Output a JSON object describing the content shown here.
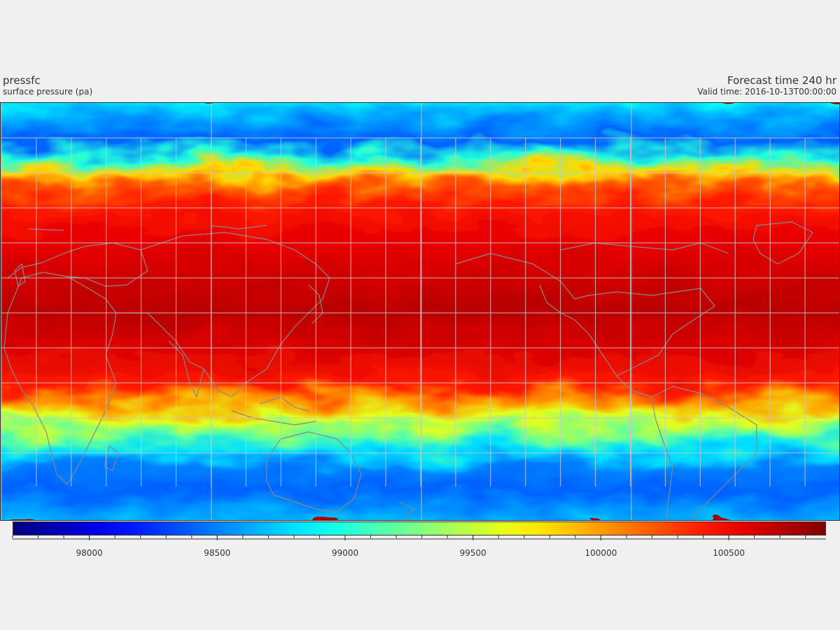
{
  "header": {
    "variable": "pressfc",
    "long_name": "surface pressure (pa)",
    "forecast": "Forecast time 240 hr",
    "valid": "Valid time: 2016-10-13T00:00:00"
  },
  "map": {
    "projection": "cylindrical",
    "gridlines": true,
    "coastlines": true,
    "field_description_bands_lat_value": [
      [
        90,
        98900
      ],
      [
        80,
        98600
      ],
      [
        72,
        98400
      ],
      [
        65,
        99000
      ],
      [
        58,
        99800
      ],
      [
        52,
        100200
      ],
      [
        45,
        100400
      ],
      [
        30,
        100550
      ],
      [
        0,
        100700
      ],
      [
        -15,
        100600
      ],
      [
        -30,
        100400
      ],
      [
        -38,
        100000
      ],
      [
        -45,
        99600
      ],
      [
        -52,
        99200
      ],
      [
        -58,
        98800
      ],
      [
        -65,
        98500
      ],
      [
        -75,
        98400
      ],
      [
        -90,
        98700
      ]
    ]
  },
  "colorbar": {
    "colormap": "jet",
    "vmin": 97700,
    "vmax": 100880,
    "tick_values": [
      98000,
      98500,
      99000,
      99500,
      100000,
      100500
    ],
    "tick_labels": [
      "98000",
      "98500",
      "99000",
      "99500",
      "100000",
      "100500"
    ],
    "minor_step": 100
  }
}
